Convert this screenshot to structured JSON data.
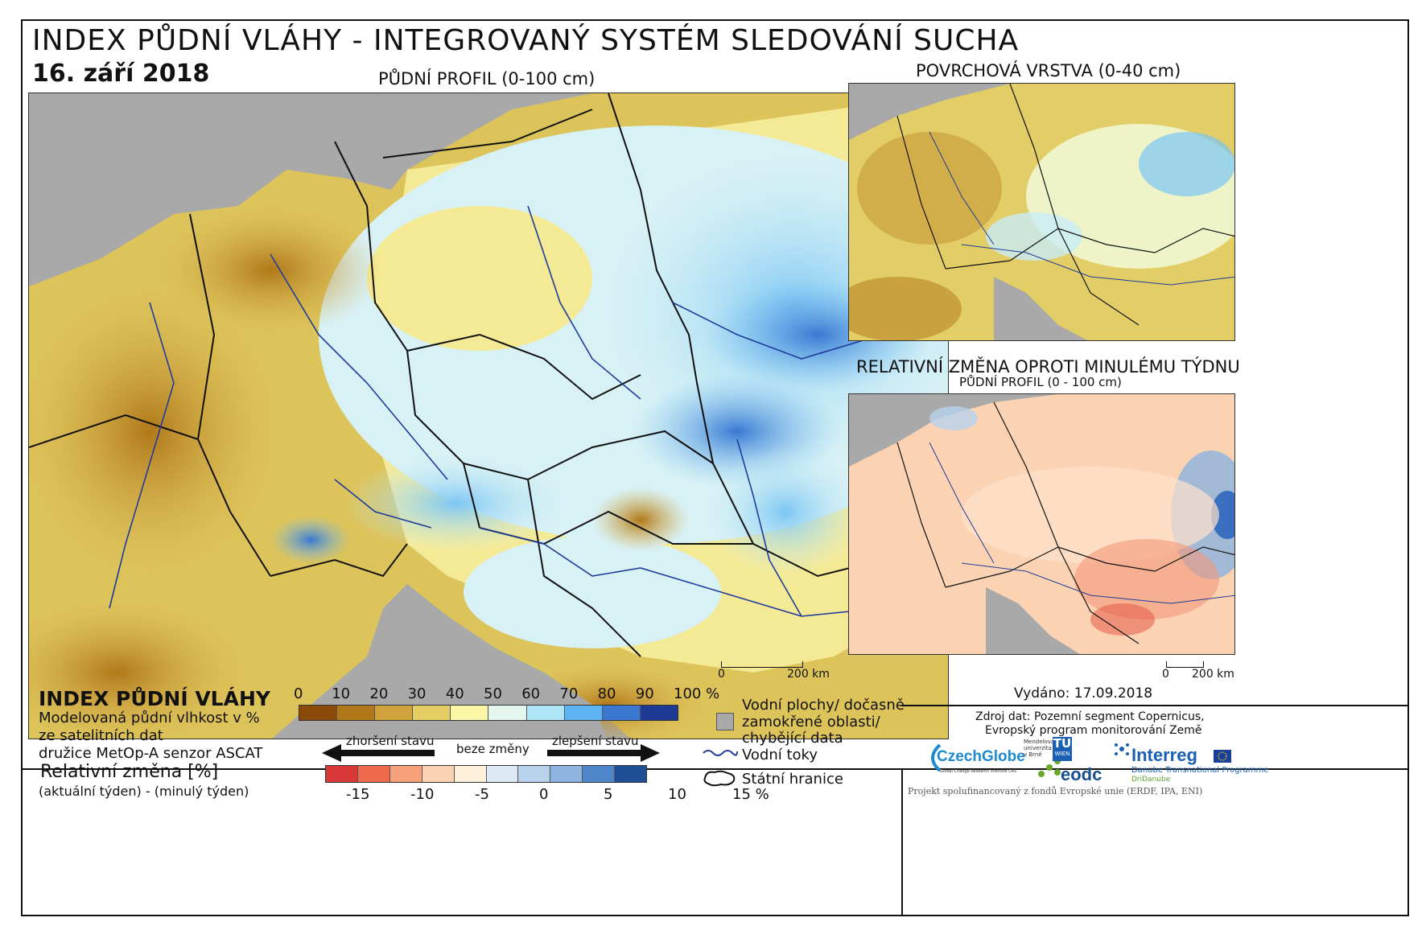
{
  "header": {
    "title": "INDEX PŮDNÍ VLÁHY - INTEGROVANÝ SYSTÉM SLEDOVÁNÍ SUCHA",
    "date": "16. září 2018"
  },
  "maps": {
    "main_label": "PŮDNÍ PROFIL (0-100 cm)",
    "surface_label": "POVRCHOVÁ VRSTVA (0-40 cm)",
    "change_label_1": "RELATIVNÍ ZMĚNA OPROTI MINULÉMU TÝDNU",
    "change_label_2": "PŮDNÍ PROFIL (0 - 100 cm)",
    "scale_main_0": "0",
    "scale_main_200": "200 km",
    "scale_small_0": "0",
    "scale_small_200": "200 km"
  },
  "legend": {
    "index_title": "INDEX PŮDNÍ VLÁHY",
    "desc_line1": "Modelovaná půdní vlhkost v %",
    "desc_line2": "ze satelitních dat",
    "desc_line3": "družice MetOp-A senzor ASCAT",
    "rel_title": "Relativní změna [%]",
    "rel_desc": "(aktuální týden) - (minulý týden)",
    "index_ticks": [
      "0",
      "10",
      "20",
      "30",
      "40",
      "50",
      "60",
      "70",
      "80",
      "90",
      "100 %"
    ],
    "index_colors": [
      "#8c4a0a",
      "#b07818",
      "#cfa23c",
      "#e4cd62",
      "#fbf5a6",
      "#e4f6ee",
      "#aee6f8",
      "#5eb4f2",
      "#3a78d2",
      "#1c3a94"
    ],
    "worse_label": "zhoršení stavu",
    "nochange_label": "beze změny",
    "better_label": "zlepšení stavu",
    "change_ticks": [
      "-15",
      "-10",
      "-5",
      "0",
      "5",
      "10",
      "15 %"
    ],
    "change_colors": [
      "#d83838",
      "#ef6a4c",
      "#f8a27c",
      "#fcd2b2",
      "#fff0dc",
      "#dde9f5",
      "#b8d2ec",
      "#8db4e0",
      "#4f86ca",
      "#1e4f96"
    ],
    "water_label_1": "Vodní plochy/ dočasně",
    "water_label_2": "zamokřené oblasti/",
    "water_label_3": "chybějící data",
    "rivers_label": "Vodní toky",
    "borders_label": "Státní hranice"
  },
  "credits": {
    "issued": "Vydáno: 17.09.2018",
    "source_line1": "Zdroj dat: Pozemní segment Copernicus,",
    "source_line2": "Evropský program monitorování Země",
    "czechglobe": "CzechGlobe",
    "czechglobe_sub": "Global Change Research Institute CAS",
    "mendel_1": "Mendelova",
    "mendel_2": "univerzita",
    "mendel_3": "v Brně",
    "tu": "TU",
    "tu_sub": "WIEN",
    "eodc": "eodc",
    "interreg": "Interreg",
    "danube_1": "Danube Transnational Programme",
    "danube_2": "DriDanube",
    "footer": "Projekt spolufinancovaný z fondů Evropské unie (ERDF, IPA, ENI)"
  }
}
